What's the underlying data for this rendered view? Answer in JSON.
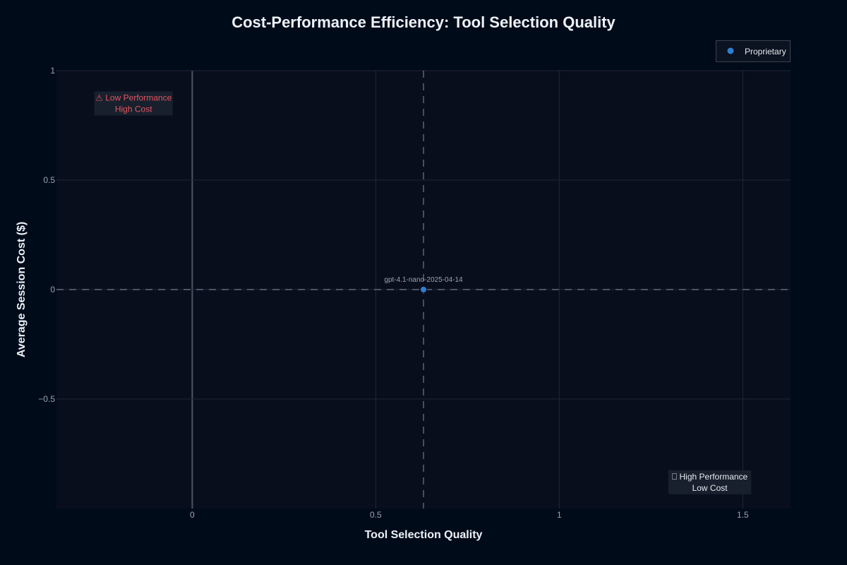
{
  "chart_data": {
    "type": "scatter",
    "title": "Cost-Performance Efficiency: Tool Selection Quality",
    "xlabel": "Tool Selection Quality",
    "ylabel": "Average Session Cost ($)",
    "xlim": [
      -0.37,
      1.63
    ],
    "ylim": [
      -1.0,
      1.0
    ],
    "x_ticks": [
      0,
      0.5,
      1,
      1.5
    ],
    "x_tick_labels": [
      "0",
      "0.5",
      "1",
      "1.5"
    ],
    "y_ticks": [
      -0.5,
      0,
      0.5,
      1
    ],
    "y_tick_labels": [
      "−0.5",
      "0",
      "0.5",
      "1"
    ],
    "grid": true,
    "legend_position": "top-right",
    "reference_lines": {
      "x": 0.63,
      "y": 0
    },
    "series": [
      {
        "name": "Proprietary",
        "color": "#2f7fd1",
        "points": [
          {
            "x": 0.63,
            "y": 0,
            "label": "gpt-4.1-nano-2025-04-14"
          }
        ]
      }
    ],
    "annotations": [
      {
        "lines": [
          "⚠ Low Performance",
          "High Cost"
        ],
        "color": "#e05561",
        "x": -0.16,
        "y": 0.85
      },
      {
        "lines": [
          "⎕ High Performance",
          "Low Cost"
        ],
        "color": "#e6e9ee",
        "x": 1.41,
        "y": -0.88
      }
    ]
  }
}
